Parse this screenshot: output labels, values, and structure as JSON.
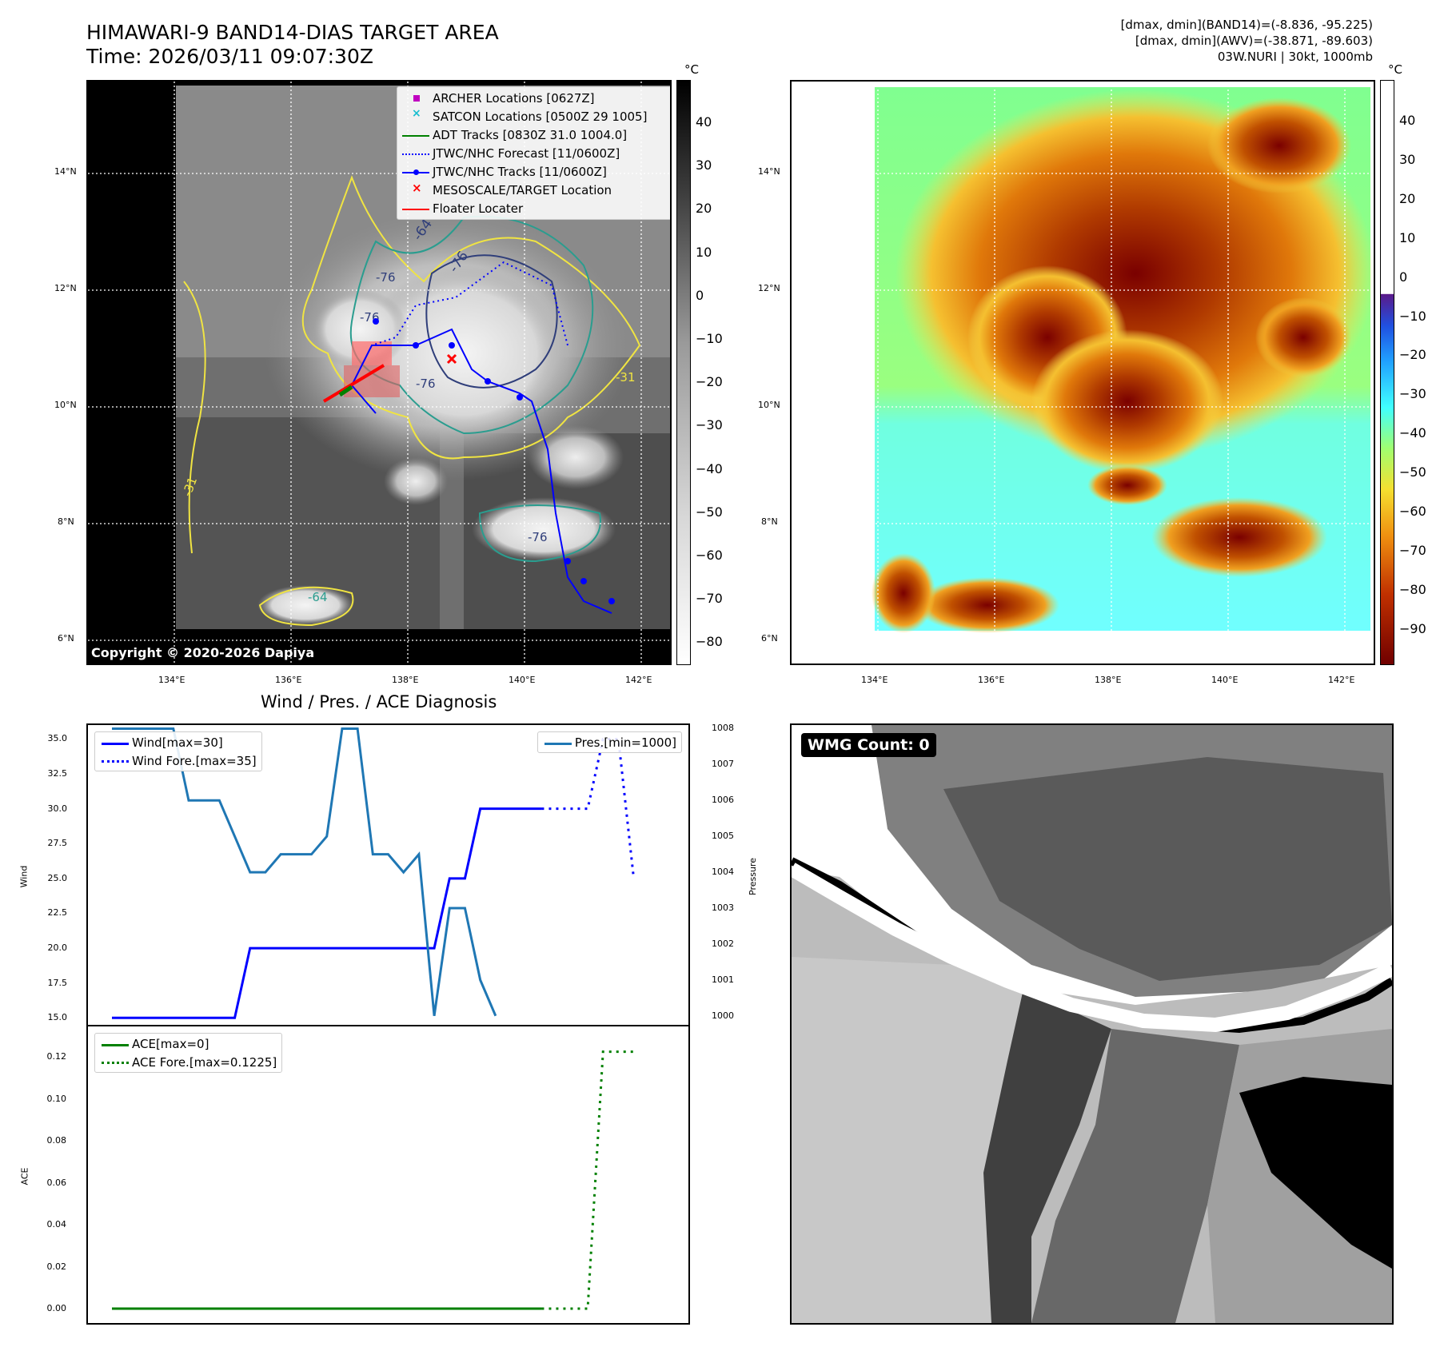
{
  "header": {
    "title_line1": "HIMAWARI-9 BAND14-DIAS TARGET AREA",
    "title_line2": "Time: 2026/03/11 09:07:30Z",
    "meta_line1": "[dmax, dmin](BAND14)=(-8.836, -95.225)",
    "meta_line2": "[dmax, dmin](AWV)=(-38.871, -89.603)",
    "meta_line3": "03W.NURI | 30kt, 1000mb"
  },
  "map": {
    "lat_labels": [
      "14°N",
      "12°N",
      "10°N",
      "8°N",
      "6°N"
    ],
    "lon_labels": [
      "134°E",
      "136°E",
      "138°E",
      "140°E",
      "142°E"
    ],
    "copyright": "Copyright © 2020-2026 Dapiya",
    "contour_labels": [
      "-64",
      "-76",
      "-76",
      "-76",
      "-76",
      "-64",
      "-31",
      "-31",
      "-76"
    ],
    "legend": [
      {
        "label": "ARCHER Locations [0627Z]",
        "icon": "magenta-square",
        "color": "#c000c0"
      },
      {
        "label": "SATCON Locations [0500Z 29 1005]",
        "icon": "cyan-x",
        "color": "#17becf"
      },
      {
        "label": "ADT Tracks [0830Z 31.0 1004.0]",
        "icon": "green-line",
        "color": "#008000"
      },
      {
        "label": "JTWC/NHC Forecast [11/0600Z]",
        "icon": "blue-dotted-line",
        "color": "#0000ff"
      },
      {
        "label": "JTWC/NHC Tracks [11/0600Z]",
        "icon": "blue-line-dot",
        "color": "#0000ff"
      },
      {
        "label": "MESOSCALE/TARGET Location",
        "icon": "red-x",
        "color": "#ff0000"
      },
      {
        "label": "Floater Locater",
        "icon": "red-line",
        "color": "#ff0000"
      }
    ]
  },
  "colorbar_gray": {
    "unit": "°C",
    "ticks": [
      "40",
      "30",
      "20",
      "10",
      "0",
      "−10",
      "−20",
      "−30",
      "−40",
      "−50",
      "−60",
      "−70",
      "−80"
    ]
  },
  "colorbar_color": {
    "unit": "°C",
    "ticks": [
      "40",
      "30",
      "20",
      "10",
      "0",
      "−10",
      "−20",
      "−30",
      "−40",
      "−50",
      "−60",
      "−70",
      "−80",
      "−90"
    ]
  },
  "wmg": {
    "label": "WMG Count: 0"
  },
  "chart_data": [
    {
      "type": "line",
      "title": "Wind / Pres. / ACE Diagnosis",
      "ylabel": "Wind",
      "y2label": "Pressure",
      "ylim": [
        14.5,
        36
      ],
      "y2lim": [
        999.75,
        1008.1
      ],
      "y_ticks": [
        "35.0",
        "32.5",
        "30.0",
        "27.5",
        "25.0",
        "22.5",
        "20.0",
        "17.5",
        "15.0"
      ],
      "y2_ticks": [
        "1008",
        "1007",
        "1006",
        "1005",
        "1004",
        "1003",
        "1002",
        "1001",
        "1000"
      ],
      "x": [
        0,
        1,
        2,
        3,
        4,
        5,
        6,
        7,
        8,
        9,
        10,
        11,
        12,
        13,
        14,
        15,
        16,
        17,
        18,
        19,
        20,
        21,
        22,
        23,
        24,
        25,
        26,
        27,
        28,
        29,
        30,
        31,
        32,
        33,
        34,
        35,
        36
      ],
      "series": [
        {
          "name": "Wind[max=30]",
          "color": "#0000ff",
          "style": "solid",
          "x": [
            0,
            8,
            9,
            10,
            11,
            12,
            13,
            14,
            15,
            16,
            17,
            18,
            19,
            20,
            21,
            22,
            23,
            24,
            25,
            26,
            27,
            28
          ],
          "values": [
            15,
            15,
            20,
            20,
            20,
            20,
            20,
            20,
            20,
            20,
            20,
            20,
            20,
            20,
            20,
            25,
            25,
            30,
            30,
            30,
            30,
            30
          ]
        },
        {
          "name": "Wind Fore.[max=35]",
          "color": "#0000ff",
          "style": "dotted",
          "x": [
            28,
            29,
            30,
            31,
            32,
            33,
            34
          ],
          "values": [
            30,
            30,
            30,
            30,
            35,
            35,
            25
          ]
        },
        {
          "name": "Pres.[min=1000]",
          "color": "#1f77b4",
          "style": "solid",
          "axis": "right",
          "x": [
            0,
            1,
            2,
            3,
            4,
            5,
            6,
            7,
            8,
            9,
            10,
            11,
            12,
            13,
            14,
            15,
            16,
            17,
            18,
            19,
            20,
            21,
            22,
            23,
            24,
            25,
            26,
            27,
            28
          ],
          "values": [
            1008,
            1008,
            1008,
            1008,
            1008,
            1006,
            1006,
            1006,
            1005,
            1004,
            1004,
            1004.5,
            1004.5,
            1004.5,
            1005,
            1008,
            1008,
            1004.5,
            1004.5,
            1004,
            1004.5,
            1000,
            1003,
            1003,
            1001,
            1000,
            null,
            null,
            null
          ]
        }
      ]
    },
    {
      "type": "line",
      "ylabel": "ACE",
      "ylim": [
        -0.005,
        0.13
      ],
      "y_ticks": [
        "0.12",
        "0.10",
        "0.08",
        "0.06",
        "0.04",
        "0.02",
        "0.00"
      ],
      "series": [
        {
          "name": "ACE[max=0]",
          "color": "#008000",
          "style": "solid",
          "x": [
            0,
            28
          ],
          "values": [
            0,
            0
          ]
        },
        {
          "name": "ACE Fore.[max=0.1225]",
          "color": "#008000",
          "style": "dotted",
          "x": [
            28,
            31,
            32,
            33,
            34
          ],
          "values": [
            0,
            0,
            0.1225,
            0.1225,
            0.1225
          ]
        }
      ]
    }
  ]
}
